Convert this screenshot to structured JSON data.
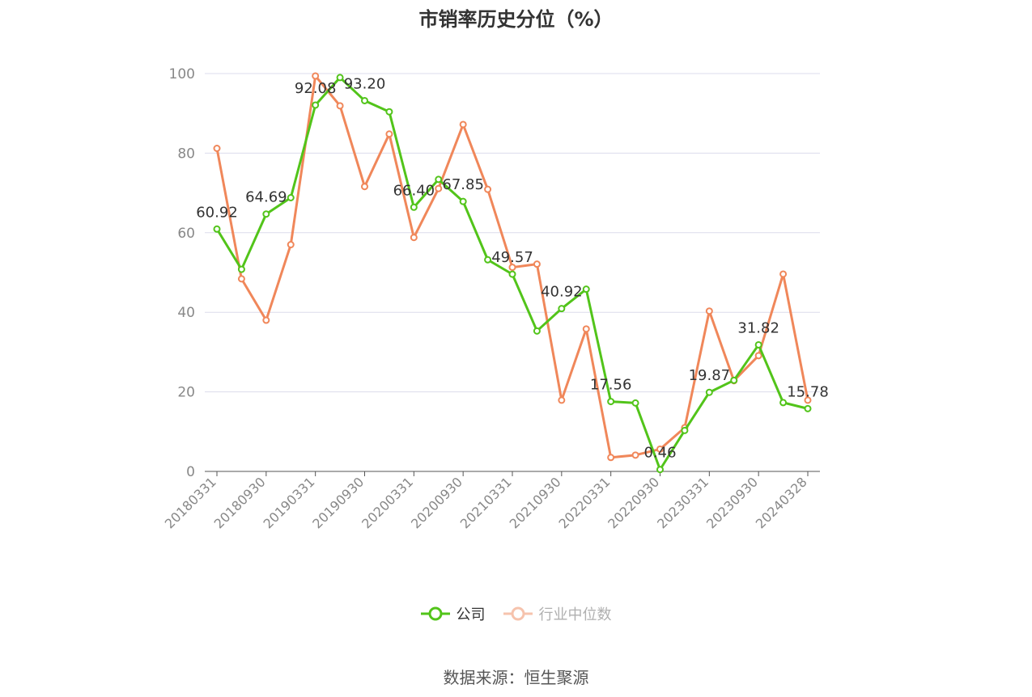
{
  "chart_data": {
    "type": "line",
    "title": "市销率历史分位（%）",
    "x": [
      "20180331",
      "20180630",
      "20180930",
      "20181231",
      "20190331",
      "20190630",
      "20190930",
      "20191231",
      "20200331",
      "20200630",
      "20200930",
      "20201231",
      "20210331",
      "20210630",
      "20210930",
      "20211231",
      "20220331",
      "20220630",
      "20220930",
      "20221231",
      "20230331",
      "20230630",
      "20230930",
      "20231231",
      "20240328"
    ],
    "x_tick_labels": [
      "20180331",
      "20180930",
      "20190331",
      "20190930",
      "20200331",
      "20200930",
      "20210331",
      "20210930",
      "20220331",
      "20220930",
      "20230331",
      "20230930",
      "20240328"
    ],
    "ylim": [
      0,
      100
    ],
    "y_ticks": [
      0,
      20,
      40,
      60,
      80,
      100
    ],
    "grid": true,
    "legend_position": "bottom",
    "series": [
      {
        "name": "公司",
        "color": "#52c41a",
        "values": [
          60.92,
          50.8,
          64.69,
          68.8,
          92.08,
          99.0,
          93.2,
          90.4,
          66.4,
          73.4,
          67.85,
          53.2,
          49.57,
          35.3,
          40.92,
          45.8,
          17.56,
          17.2,
          0.46,
          10.3,
          19.87,
          22.9,
          31.82,
          17.3,
          15.78
        ],
        "labels": [
          "60.92",
          "",
          "64.69",
          "",
          "92.08",
          "",
          "93.20",
          "",
          "66.40",
          "",
          "67.85",
          "",
          "49.57",
          "",
          "40.92",
          "",
          "17.56",
          "",
          "0.46",
          "",
          "19.87",
          "",
          "31.82",
          "",
          "15.78"
        ]
      },
      {
        "name": "行业中位数",
        "color": "#f0875a",
        "values": [
          81.2,
          48.4,
          38.0,
          57.0,
          99.4,
          91.9,
          71.6,
          84.8,
          58.8,
          71.1,
          87.2,
          70.9,
          51.3,
          52.1,
          17.9,
          35.8,
          3.5,
          4.1,
          5.6,
          11.0,
          40.3,
          22.8,
          29.1,
          49.6,
          17.9
        ]
      }
    ]
  },
  "legend": {
    "company_label": "公司",
    "industry_label": "行业中位数"
  },
  "source_text": "数据来源：恒生聚源"
}
